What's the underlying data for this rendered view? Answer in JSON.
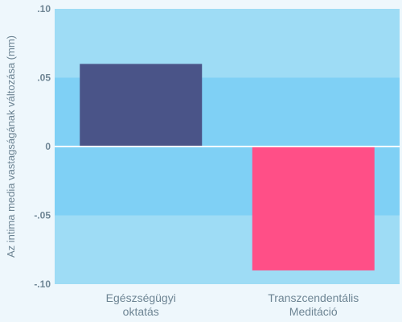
{
  "chart_data": {
    "type": "bar",
    "categories": [
      [
        "Egészségügyi",
        "oktatás"
      ],
      [
        "Transzcendentális",
        "Meditáció"
      ]
    ],
    "values": [
      0.06,
      -0.09
    ],
    "bar_colors": [
      "#4a5488",
      "#ff4f87"
    ],
    "ylabel": "Az intima media vastagságának változása (mm)",
    "ylim": [
      -0.1,
      0.1
    ],
    "yticks": [
      0.1,
      0.05,
      0,
      -0.05,
      -0.1
    ],
    "ytick_labels": [
      ".10",
      ".05",
      "0",
      "-.05",
      "-.10"
    ],
    "band_colors": [
      "#9edcf5",
      "#7fd0f5",
      "#7fd0f5",
      "#9edcf5"
    ],
    "label_color": "#6e8594",
    "zero_line_color": "#ffffff",
    "grid": false
  }
}
